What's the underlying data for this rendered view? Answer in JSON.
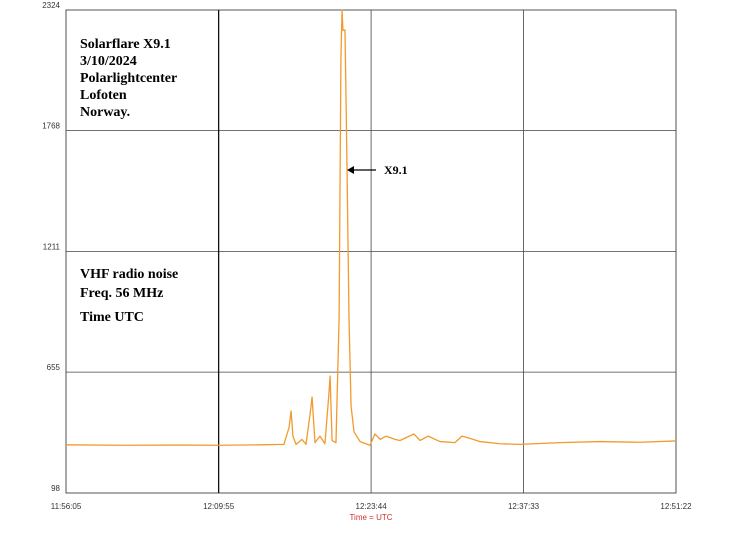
{
  "chart_data": {
    "type": "line",
    "annotations": [
      "Solarflare X9.1",
      "3/10/2024",
      "Polarlightcenter",
      "Lofoten",
      "Norway.",
      "VHF radio noise",
      "Freq. 56 MHz",
      "Time UTC"
    ],
    "arrow_label": "X9.1",
    "x_label": "Time = UTC",
    "color": "#f29a2e",
    "grid": true,
    "ylim": [
      98,
      2324
    ],
    "yticks": [
      98,
      655,
      1211,
      1768,
      2324
    ],
    "xlim": [
      "11:56:05",
      "12:51:22"
    ],
    "xticks": [
      "11:56:05",
      "12:09:55",
      "12:23:44",
      "12:37:33",
      "12:51:22"
    ],
    "x": [
      "11:56:05",
      "12:00:59",
      "12:06:25",
      "12:09:52",
      "12:13:40",
      "12:15:50",
      "12:16:18",
      "12:16:29",
      "12:16:39",
      "12:16:56",
      "12:17:28",
      "12:17:50",
      "12:18:12",
      "12:18:23",
      "12:18:39",
      "12:19:06",
      "12:19:33",
      "12:19:55",
      "12:20:01",
      "12:20:12",
      "12:20:33",
      "12:20:50",
      "12:21:00",
      "12:21:06",
      "12:21:11",
      "12:21:22",
      "12:21:28",
      "12:21:33",
      "12:21:44",
      "12:21:55",
      "12:22:11",
      "12:22:44",
      "12:23:38",
      "12:24:05",
      "12:24:33",
      "12:25:05",
      "12:25:54",
      "12:26:21",
      "12:27:37",
      "12:28:10",
      "12:28:54",
      "12:29:59",
      "12:31:20",
      "12:31:58",
      "12:32:42",
      "12:33:36",
      "12:35:25",
      "12:37:14",
      "12:40:51",
      "12:44:29",
      "12:48:06",
      "12:51:22"
    ],
    "values": [
      320,
      318,
      319,
      318,
      320,
      322,
      400,
      476,
      360,
      322,
      345,
      322,
      460,
      540,
      330,
      360,
      325,
      560,
      637,
      340,
      330,
      900,
      2100,
      2324,
      2230,
      2232,
      1900,
      1600,
      900,
      500,
      380,
      335,
      318,
      370,
      345,
      360,
      345,
      340,
      370,
      340,
      360,
      335,
      330,
      360,
      350,
      335,
      325,
      322,
      330,
      335,
      332,
      338
    ]
  }
}
